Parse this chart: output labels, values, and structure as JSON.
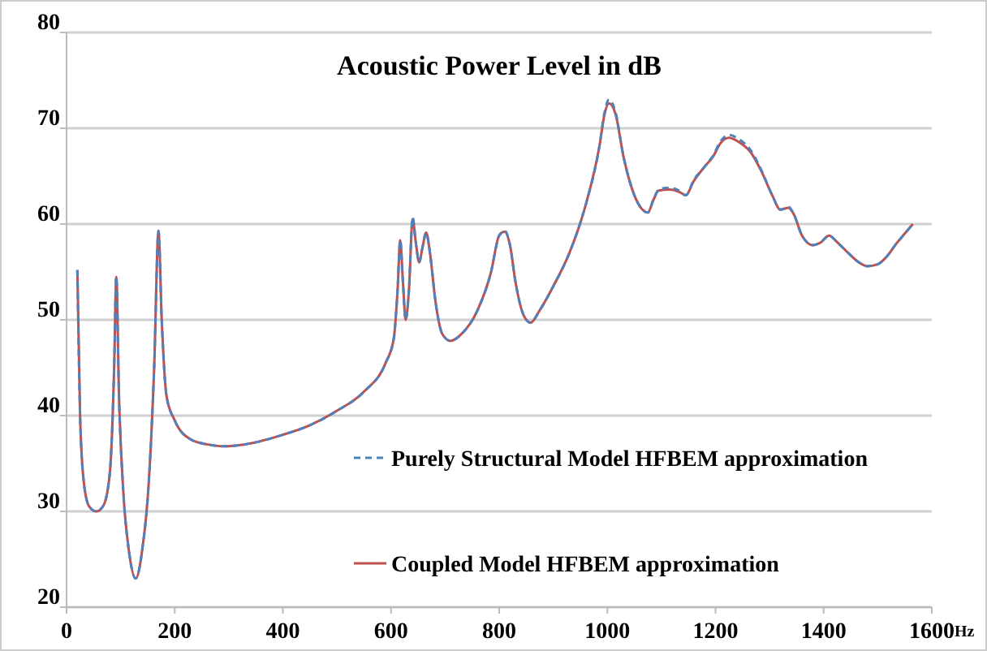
{
  "chart_data": {
    "type": "line",
    "title": "Acoustic Power Level in dB",
    "xlabel": "Hz",
    "x": [
      20,
      25,
      32,
      42,
      55,
      68,
      80,
      88,
      92,
      97,
      105,
      115,
      128,
      140,
      152,
      162,
      170,
      176,
      185,
      200,
      230,
      260,
      290,
      330,
      400,
      450,
      500,
      550,
      590,
      605,
      612,
      617,
      622,
      627,
      633,
      640,
      646,
      652,
      658,
      665,
      672,
      682,
      695,
      710,
      730,
      760,
      785,
      800,
      810,
      820,
      830,
      845,
      858,
      875,
      900,
      930,
      960,
      985,
      995,
      1003,
      1015,
      1030,
      1050,
      1065,
      1075,
      1085,
      1095,
      1115,
      1135,
      1145,
      1160,
      1180,
      1195,
      1210,
      1225,
      1245,
      1265,
      1285,
      1305,
      1320,
      1335,
      1345,
      1360,
      1380,
      1395,
      1410,
      1425,
      1445,
      1465,
      1480,
      1500,
      1515,
      1535,
      1550,
      1565
    ],
    "series": [
      {
        "name": "Purely Structural Model HFBEM approximation",
        "color": "#4f81bd",
        "line_style": "dashed",
        "values": [
          55.2,
          40,
          33,
          30.5,
          30,
          30.6,
          34,
          45,
          54.5,
          42,
          32,
          26,
          23,
          26,
          33,
          45,
          59.3,
          50,
          42,
          39.5,
          37.5,
          37,
          36.8,
          37,
          38,
          39,
          40.5,
          42.5,
          45.5,
          48,
          53,
          58.3,
          54,
          50,
          53,
          60.7,
          58,
          56,
          57.5,
          59.1,
          57,
          52,
          48.5,
          47.8,
          48.5,
          51,
          55,
          58.8,
          59.3,
          57.8,
          54,
          50.5,
          49.7,
          51,
          53.5,
          57,
          62,
          68,
          71.7,
          73,
          71.7,
          67,
          63,
          61.5,
          61.2,
          62.5,
          63.6,
          63.8,
          63.4,
          63,
          64.6,
          66,
          67.1,
          68.7,
          69.3,
          68.8,
          67.7,
          65.6,
          63,
          61.5,
          61.8,
          61,
          58.8,
          57.8,
          58.1,
          58.8,
          58.1,
          57,
          56,
          55.6,
          55.8,
          56.5,
          58,
          59,
          60
        ]
      },
      {
        "name": "Coupled Model HFBEM approximation",
        "color": "#c0504d",
        "line_style": "solid",
        "values": [
          55.2,
          40,
          33,
          30.5,
          30,
          30.6,
          34,
          45,
          54.5,
          42,
          32,
          26,
          23,
          26,
          33,
          45,
          59.3,
          50,
          42,
          39.5,
          37.5,
          37,
          36.8,
          37,
          38,
          39,
          40.5,
          42.5,
          45.5,
          48,
          53,
          58.3,
          54,
          50,
          53,
          60.5,
          58,
          56,
          57.5,
          59.1,
          57,
          52,
          48.5,
          47.8,
          48.5,
          51,
          55,
          58.8,
          59.2,
          57.8,
          54,
          50.5,
          49.7,
          51,
          53.5,
          57,
          62,
          68,
          71.5,
          72.6,
          71.5,
          67,
          63,
          61.5,
          61.2,
          62.5,
          63.5,
          63.6,
          63.3,
          63,
          64.5,
          66,
          67,
          68.5,
          69,
          68.5,
          67.5,
          65.5,
          63,
          61.5,
          61.7,
          61,
          58.8,
          57.8,
          58.1,
          58.8,
          58.1,
          57,
          56,
          55.6,
          55.8,
          56.5,
          58,
          59,
          60
        ]
      }
    ],
    "xlim": [
      0,
      1600
    ],
    "xticks": [
      0,
      200,
      400,
      600,
      800,
      1000,
      1200,
      1400,
      1600
    ],
    "ylim": [
      20,
      80
    ],
    "yticks": [
      20,
      30,
      40,
      50,
      60,
      70,
      80
    ],
    "grid": "y",
    "legend": "bottom",
    "marker": "none"
  }
}
